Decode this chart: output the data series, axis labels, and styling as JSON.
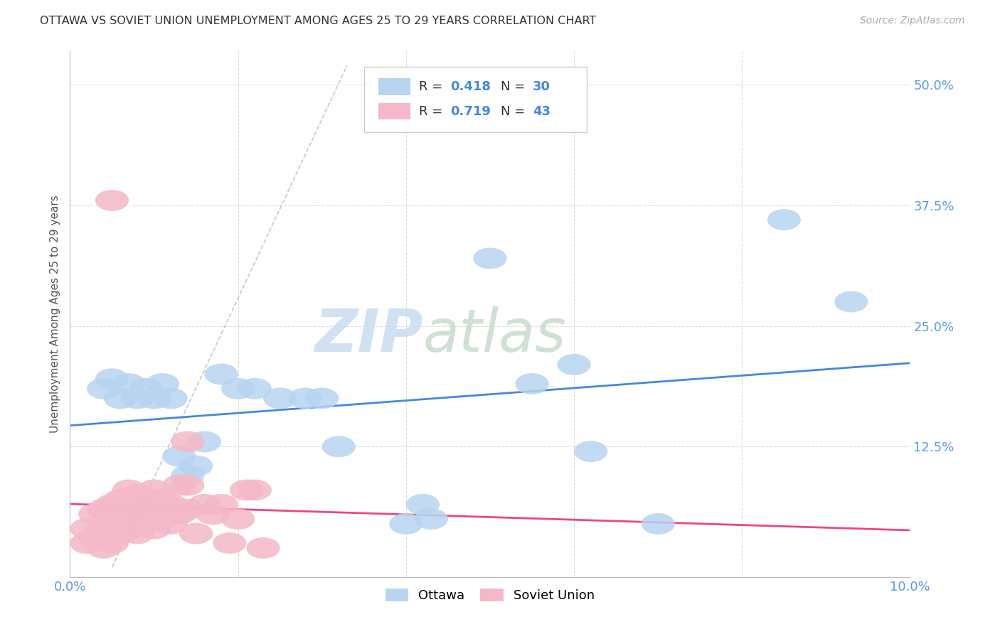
{
  "title": "OTTAWA VS SOVIET UNION UNEMPLOYMENT AMONG AGES 25 TO 29 YEARS CORRELATION CHART",
  "source": "Source: ZipAtlas.com",
  "ylabel": "Unemployment Among Ages 25 to 29 years",
  "xlim": [
    0.0,
    0.1
  ],
  "ylim": [
    -0.01,
    0.535
  ],
  "xtick_positions": [
    0.0,
    0.1
  ],
  "xtick_labels": [
    "0.0%",
    "10.0%"
  ],
  "ytick_positions": [
    0.0,
    0.125,
    0.25,
    0.375,
    0.5
  ],
  "ytick_labels": [
    "",
    "12.5%",
    "25.0%",
    "37.5%",
    "50.0%"
  ],
  "grid_yticks": [
    0.125,
    0.25,
    0.375,
    0.5
  ],
  "grid_xticks": [
    0.02,
    0.04,
    0.06,
    0.08
  ],
  "ottawa_R": "0.418",
  "ottawa_N": "30",
  "soviet_R": "0.719",
  "soviet_N": "43",
  "ottawa_color": "#b8d4f0",
  "soviet_color": "#f4b8c8",
  "ottawa_line_color": "#4488dd",
  "soviet_line_color": "#ee4488",
  "ref_line_color": "#c8c8c8",
  "grid_color": "#dddddd",
  "ottawa_x": [
    0.004,
    0.005,
    0.006,
    0.007,
    0.008,
    0.009,
    0.01,
    0.011,
    0.012,
    0.013,
    0.014,
    0.015,
    0.016,
    0.018,
    0.02,
    0.022,
    0.025,
    0.028,
    0.03,
    0.032,
    0.04,
    0.042,
    0.043,
    0.05,
    0.055,
    0.06,
    0.062,
    0.07,
    0.085,
    0.093
  ],
  "ottawa_y": [
    0.185,
    0.195,
    0.175,
    0.19,
    0.175,
    0.185,
    0.175,
    0.19,
    0.175,
    0.115,
    0.095,
    0.105,
    0.13,
    0.2,
    0.185,
    0.185,
    0.175,
    0.175,
    0.175,
    0.125,
    0.045,
    0.065,
    0.05,
    0.32,
    0.19,
    0.21,
    0.12,
    0.045,
    0.36,
    0.275
  ],
  "soviet_x": [
    0.002,
    0.002,
    0.003,
    0.003,
    0.004,
    0.004,
    0.004,
    0.005,
    0.005,
    0.005,
    0.006,
    0.006,
    0.006,
    0.007,
    0.007,
    0.007,
    0.008,
    0.008,
    0.008,
    0.009,
    0.009,
    0.01,
    0.01,
    0.01,
    0.011,
    0.011,
    0.012,
    0.012,
    0.013,
    0.013,
    0.014,
    0.014,
    0.015,
    0.016,
    0.017,
    0.018,
    0.019,
    0.02,
    0.021,
    0.022,
    0.023,
    0.014,
    0.005
  ],
  "soviet_y": [
    0.025,
    0.04,
    0.03,
    0.055,
    0.02,
    0.04,
    0.06,
    0.025,
    0.045,
    0.065,
    0.035,
    0.055,
    0.07,
    0.04,
    0.06,
    0.08,
    0.035,
    0.055,
    0.075,
    0.045,
    0.065,
    0.04,
    0.06,
    0.08,
    0.05,
    0.07,
    0.045,
    0.065,
    0.055,
    0.085,
    0.06,
    0.085,
    0.035,
    0.065,
    0.055,
    0.065,
    0.025,
    0.05,
    0.08,
    0.08,
    0.02,
    0.13,
    0.38
  ],
  "watermark_zip_color": "#c8dcf0",
  "watermark_atlas_color": "#c0d8c8"
}
